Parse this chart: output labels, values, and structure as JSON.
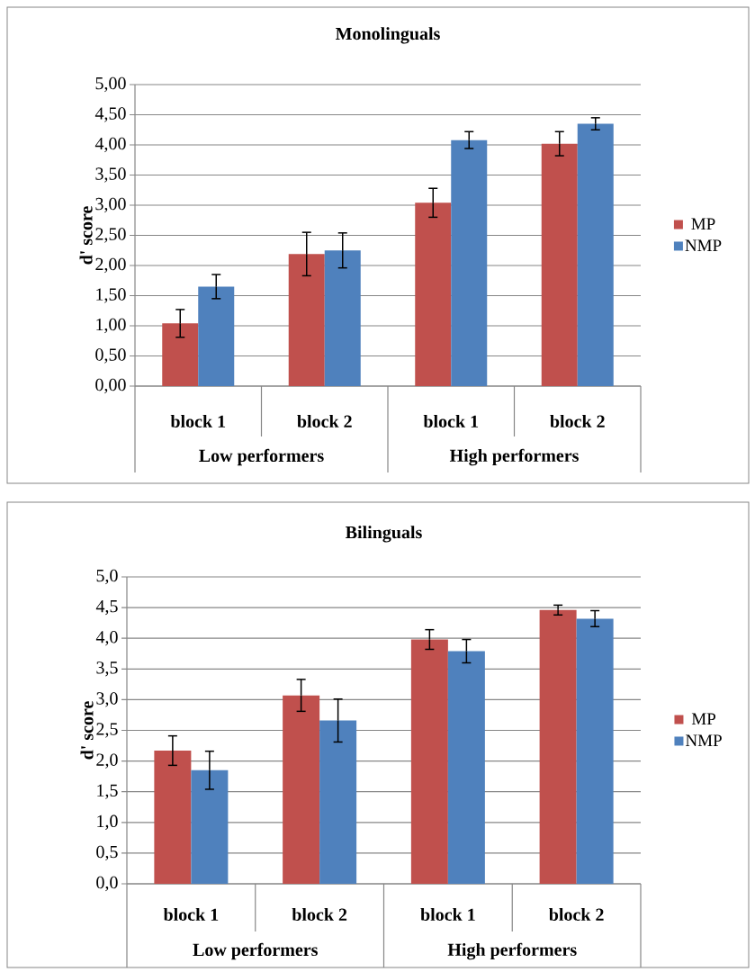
{
  "chart_data": [
    {
      "type": "bar",
      "title": "Monolinguals",
      "ylabel": "d' score",
      "categories": [
        "block 1",
        "block 2",
        "block 1",
        "block 2"
      ],
      "series": [
        {
          "name": "MP",
          "color": "#c0504d",
          "values": [
            1.04,
            2.19,
            3.04,
            4.02
          ],
          "errors": [
            0.23,
            0.36,
            0.24,
            0.2
          ]
        },
        {
          "name": "NMP",
          "color": "#4f81bd",
          "values": [
            1.65,
            2.25,
            4.08,
            4.35
          ],
          "errors": [
            0.2,
            0.29,
            0.14,
            0.1
          ]
        }
      ],
      "ylim": [
        0,
        5
      ],
      "yticks": [
        {
          "value": 0,
          "label": "0,00"
        },
        {
          "value": 0.5,
          "label": "0,50"
        },
        {
          "value": 1,
          "label": "1,00"
        },
        {
          "value": 1.5,
          "label": "1,50"
        },
        {
          "value": 2,
          "label": "2,00"
        },
        {
          "value": 2.5,
          "label": "2,50"
        },
        {
          "value": 3,
          "label": "3,00"
        },
        {
          "value": 3.5,
          "label": "3,50"
        },
        {
          "value": 4,
          "label": "4,00"
        },
        {
          "value": 4.5,
          "label": "4,50"
        },
        {
          "value": 5,
          "label": "5,00"
        }
      ],
      "grid": "y",
      "legend": "right",
      "annotations": [
        "Low performers",
        "High performers"
      ]
    },
    {
      "type": "bar",
      "title": "Bilinguals",
      "ylabel": "d' score",
      "categories": [
        "block 1",
        "block 2",
        "block 1",
        "block 2"
      ],
      "series": [
        {
          "name": "MP",
          "color": "#c0504d",
          "values": [
            2.17,
            3.07,
            3.98,
            4.46
          ],
          "errors": [
            0.24,
            0.26,
            0.16,
            0.08
          ]
        },
        {
          "name": "NMP",
          "color": "#4f81bd",
          "values": [
            1.85,
            2.66,
            3.79,
            4.32
          ],
          "errors": [
            0.31,
            0.35,
            0.19,
            0.13
          ]
        }
      ],
      "ylim": [
        0,
        5
      ],
      "yticks": [
        {
          "value": 0,
          "label": "0,0"
        },
        {
          "value": 0.5,
          "label": "0,5"
        },
        {
          "value": 1,
          "label": "1,0"
        },
        {
          "value": 1.5,
          "label": "1,5"
        },
        {
          "value": 2,
          "label": "2,0"
        },
        {
          "value": 2.5,
          "label": "2,5"
        },
        {
          "value": 3,
          "label": "3,0"
        },
        {
          "value": 3.5,
          "label": "3,5"
        },
        {
          "value": 4,
          "label": "4,0"
        },
        {
          "value": 4.5,
          "label": "4,5"
        },
        {
          "value": 5,
          "label": "5,0"
        }
      ],
      "grid": "y",
      "legend": "right",
      "annotations": [
        "Low performers",
        "High performers"
      ]
    }
  ]
}
